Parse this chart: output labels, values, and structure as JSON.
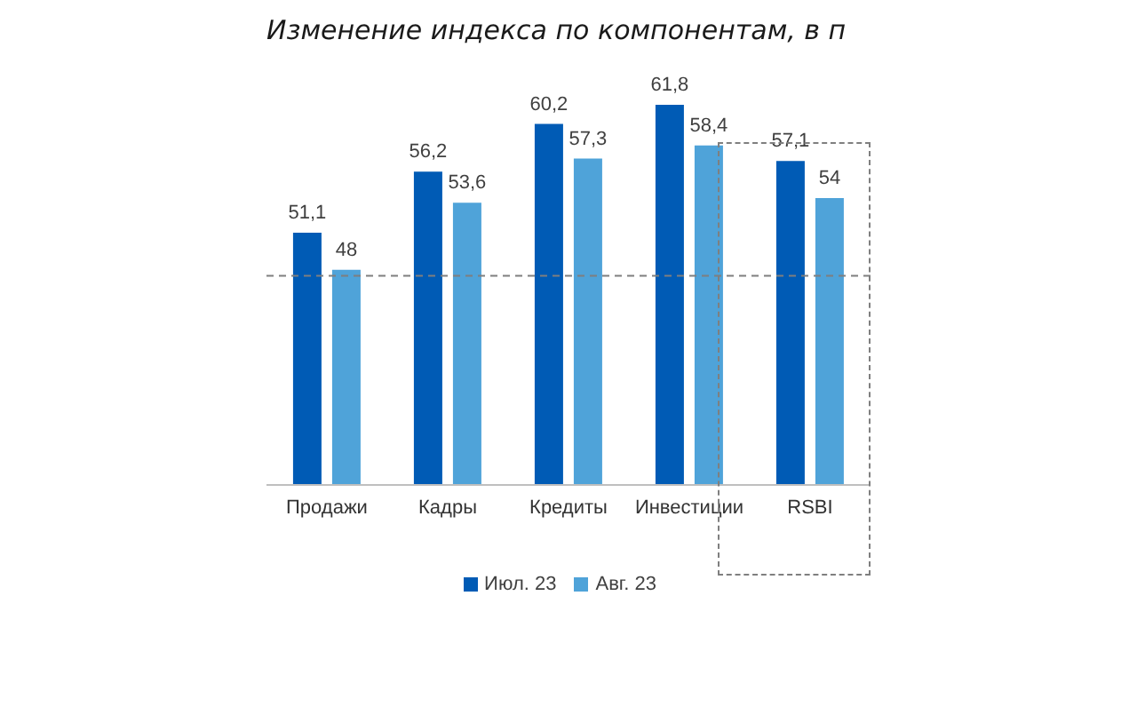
{
  "chart_data": {
    "type": "bar",
    "title": "Изменение индекса по компонентам, в п",
    "categories": [
      "Продажи",
      "Кадры",
      "Кредиты",
      "Инвестиции",
      "RSBI"
    ],
    "series": [
      {
        "name": "Июл. 23",
        "color": "#005bb5",
        "values": [
          51.1,
          56.2,
          60.2,
          61.8,
          57.1
        ],
        "value_labels": [
          "51,1",
          "56,2",
          "60,2",
          "61,8",
          "57,1"
        ]
      },
      {
        "name": "Авг. 23",
        "color": "#4fa3d9",
        "values": [
          48,
          53.6,
          57.3,
          58.4,
          54
        ],
        "value_labels": [
          "48",
          "53,6",
          "57,3",
          "58,4",
          "54"
        ]
      }
    ],
    "ylim": [
      30,
      61.8
    ],
    "tick_labels": "x",
    "legend": "bottom",
    "ref_lines": [
      {
        "axis": "y",
        "value": 47.5,
        "color": "#7f7f7f",
        "line_style": "dashed"
      }
    ]
  }
}
